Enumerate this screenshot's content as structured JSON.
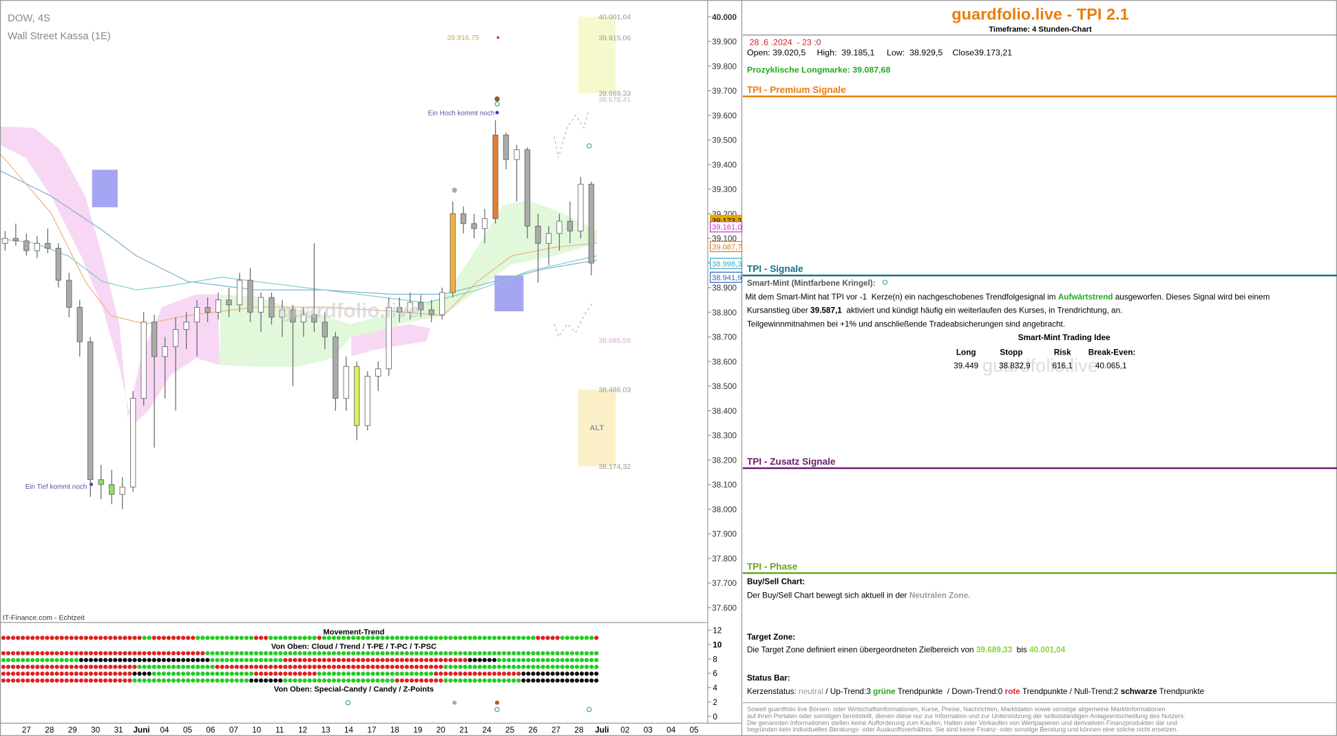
{
  "chart": {
    "symbol": "DOW, 4S",
    "name": "Wall Street Kassa (1E)",
    "source": "IT-Finance.com - Echtzeit",
    "watermark": "guardfolio.live",
    "ylim": [
      37550,
      40030
    ],
    "yticks": [
      {
        "value": 40000,
        "label": "40.000"
      },
      {
        "value": 39900,
        "label": "39.900"
      },
      {
        "value": 39800,
        "label": "39.800"
      },
      {
        "value": 39700,
        "label": "39.700"
      },
      {
        "value": 39600,
        "label": "39.600"
      },
      {
        "value": 39500,
        "label": "39.500"
      },
      {
        "value": 39400,
        "label": "39.400"
      },
      {
        "value": 39300,
        "label": "39.300"
      },
      {
        "value": 39200,
        "label": "39.200"
      },
      {
        "value": 39100,
        "label": "39.100"
      },
      {
        "value": 39000,
        "label": "39.000"
      },
      {
        "value": 38900,
        "label": "38.900"
      },
      {
        "value": 38800,
        "label": "38.800"
      },
      {
        "value": 38700,
        "label": "38.700"
      },
      {
        "value": 38600,
        "label": "38.600"
      },
      {
        "value": 38500,
        "label": "38.500"
      },
      {
        "value": 38400,
        "label": "38.400"
      },
      {
        "value": 38300,
        "label": "38.300"
      },
      {
        "value": 38200,
        "label": "38.200"
      },
      {
        "value": 38100,
        "label": "38.100"
      },
      {
        "value": 38000,
        "label": "38.000"
      },
      {
        "value": 37900,
        "label": "37.900"
      },
      {
        "value": 37800,
        "label": "37.800"
      },
      {
        "value": 37700,
        "label": "37.700"
      },
      {
        "value": 37600,
        "label": "37.600"
      }
    ],
    "dates": [
      "27",
      "28",
      "29",
      "30",
      "31",
      "Juni",
      "04",
      "05",
      "06",
      "07",
      "10",
      "11",
      "12",
      "13",
      "14",
      "17",
      "18",
      "19",
      "20",
      "21",
      "24",
      "25",
      "26",
      "27",
      "28",
      "Juli",
      "02",
      "03",
      "04",
      "05"
    ],
    "candles": [
      [
        39080,
        39130,
        39050,
        39100
      ],
      [
        39100,
        39160,
        39070,
        39090
      ],
      [
        39090,
        39120,
        39030,
        39050
      ],
      [
        39050,
        39110,
        39020,
        39080
      ],
      [
        39080,
        39140,
        39040,
        39060
      ],
      [
        39060,
        39080,
        38900,
        38930
      ],
      [
        38930,
        38960,
        38780,
        38820
      ],
      [
        38820,
        38850,
        38620,
        38680
      ],
      [
        38680,
        38700,
        38050,
        38120
      ],
      [
        38120,
        38180,
        38040,
        38100
      ],
      [
        38100,
        38160,
        38020,
        38060
      ],
      [
        38060,
        38130,
        38000,
        38090
      ],
      [
        38090,
        38480,
        38070,
        38450
      ],
      [
        38450,
        38800,
        38420,
        38760
      ],
      [
        38760,
        38790,
        38250,
        38620
      ],
      [
        38620,
        38700,
        38450,
        38660
      ],
      [
        38660,
        38780,
        38400,
        38730
      ],
      [
        38730,
        38800,
        38650,
        38760
      ],
      [
        38760,
        38850,
        38620,
        38820
      ],
      [
        38820,
        38860,
        38760,
        38800
      ],
      [
        38800,
        38880,
        38770,
        38850
      ],
      [
        38850,
        38900,
        38780,
        38830
      ],
      [
        38830,
        38960,
        38800,
        38930
      ],
      [
        38930,
        38980,
        38760,
        38800
      ],
      [
        38800,
        38880,
        38720,
        38860
      ],
      [
        38860,
        38880,
        38750,
        38780
      ],
      [
        38780,
        38850,
        38700,
        38810
      ],
      [
        38810,
        38830,
        38500,
        38760
      ],
      [
        38760,
        38820,
        38700,
        38790
      ],
      [
        38790,
        39080,
        38720,
        38760
      ],
      [
        38760,
        38800,
        38650,
        38700
      ],
      [
        38700,
        38720,
        38400,
        38450
      ],
      [
        38450,
        38620,
        38400,
        38580
      ],
      [
        38580,
        38600,
        38280,
        38340
      ],
      [
        38340,
        38560,
        38320,
        38540
      ],
      [
        38540,
        38600,
        38480,
        38570
      ],
      [
        38570,
        38860,
        38540,
        38820
      ],
      [
        38820,
        38860,
        38760,
        38800
      ],
      [
        38800,
        38880,
        38770,
        38840
      ],
      [
        38840,
        38870,
        38780,
        38810
      ],
      [
        38810,
        38850,
        38760,
        38790
      ],
      [
        38790,
        38900,
        38770,
        38880
      ],
      [
        38880,
        39250,
        38860,
        39200
      ],
      [
        39200,
        39230,
        39120,
        39160
      ],
      [
        39160,
        39200,
        39100,
        39140
      ],
      [
        39140,
        39220,
        39080,
        39180
      ],
      [
        39180,
        39580,
        39160,
        39520
      ],
      [
        39520,
        39530,
        39380,
        39420
      ],
      [
        39420,
        39480,
        39250,
        39460
      ],
      [
        39460,
        39470,
        39100,
        39150
      ],
      [
        39150,
        39200,
        38920,
        39080
      ],
      [
        39080,
        39150,
        38990,
        39120
      ],
      [
        39120,
        39200,
        39050,
        39170
      ],
      [
        39170,
        39250,
        39080,
        39130
      ],
      [
        39130,
        39350,
        39100,
        39320
      ],
      [
        39320,
        39330,
        38950,
        39000
      ]
    ],
    "price_tags": [
      {
        "value": 39173.2,
        "label": "39.173,2",
        "color": "#e8a800"
      },
      {
        "value": 39161.0,
        "label": "39.161,0",
        "color": "#cc33cc"
      },
      {
        "value": 39087.7,
        "label": "39.087,7",
        "color": "#e07a20"
      },
      {
        "value": 38998.3,
        "label": "38.998,3",
        "color": "#33aacc"
      },
      {
        "value": 38941.9,
        "label": "38.941,9",
        "color": "#3366bb"
      }
    ],
    "target_levels": [
      {
        "value": 40001.04,
        "label": "40.001,04"
      },
      {
        "value": 39915.06,
        "label": "39.915,06"
      },
      {
        "value": 39689.33,
        "label": "39.689,33"
      }
    ],
    "alt_levels": [
      {
        "value": 38486.03,
        "label": "38.486,03"
      },
      {
        "value": 38174.32,
        "label": "38.174,32"
      }
    ],
    "extra_levels": [
      {
        "value": 39678.41,
        "label": "39.678,41"
      },
      {
        "value": 38685.59,
        "label": "38.685,59"
      }
    ],
    "high_mark": {
      "value": 39916.75,
      "label": "39.916,75"
    },
    "zone_label": "ALT",
    "annotations": [
      "Ein Hoch kommt noch",
      "Ein Tief kommt noch"
    ]
  },
  "indicator": {
    "titles": [
      "Movement-Trend",
      "Von Oben: Cloud / Trend / T-PE / T-PC / T-PSC",
      "Von Oben: Special-Candy / Candy / Z-Points"
    ],
    "ylim": [
      0,
      12
    ],
    "yticks": [
      12,
      10,
      8,
      6,
      4,
      2,
      0
    ]
  },
  "panel": {
    "title": "guardfolio.live - TPI 2.1",
    "timeframe": "Timeframe: 4 Stunden-Chart",
    "datetime": "28 .6 .2024  - 23 :0",
    "ohlc": [
      "Open: 39.020,5",
      "High:  39.185,1",
      "Low:  38.929,5",
      "Close39.173,21"
    ],
    "longmark": "Prozyklische Longmarke: 39.087,68",
    "sections": [
      "TPI - Premium Signale",
      "TPI - Signale",
      "TPI - Zusatz Signale",
      "TPI - Phase"
    ],
    "smart_mint": {
      "heading": "Smart-Mint (Mintfarbene Kringel):",
      "line1": [
        "Mit dem Smart-Mint hat TPI vor -1  Kerze(n) ein nachgeschobenes Trendfolgesignal im ",
        "Aufwärtstrend",
        " ausgeworfen. Dieses Signal wird bei einem"
      ],
      "line2": [
        "Kursanstieg über ",
        "39.587,1",
        "  aktiviert und kündigt häufig ein weiterlaufen des Kurses, in Trendrichtung, an."
      ],
      "line3": "Teilgewinnmitnahmen bei +1% und anschließende Tradeabsicherungen sind angebracht.",
      "idea_title": "Smart-Mint Trading Idee",
      "headers": [
        "Long",
        "Stopp",
        "Risk",
        "Break-Even:"
      ],
      "row": [
        "39.449",
        "38.832,9",
        "616,1",
        "40.065,1"
      ]
    },
    "watermark": "guardfolio.live",
    "phase": {
      "buysell_title": "Buy/Sell Chart:",
      "buysell": [
        "Der Buy/Sell Chart bewegt sich aktuell in der ",
        "Neutralen Zone."
      ],
      "target_title": "Target Zone:",
      "target": [
        "Die Target Zone definiert einen übergeordneten Zielbereich von ",
        "39.689,33",
        "  bis ",
        "40.001,04"
      ],
      "status_title": "Status Bar:",
      "status": [
        "Kerzenstatus: ",
        "neutral",
        " / Up-Trend:3 ",
        "grüne",
        " Trendpunkte  / Down-Trend:0 ",
        "rote",
        " Trendpunkte / Null-Trend:2 ",
        "schwarze",
        " Trendpunkte"
      ]
    },
    "disclaimer": [
      "Soweit guardfolio live Börsen- oder Wirtschaftsinformationen, Kurse, Preise, Nachrichten, Marktdaten sowie sonstige allgemeine Marktinformationen",
      "auf ihren Portalen oder sonstigen bereitstellt, dienen diese nur zur Information und zur Unterstützung der selbstständigen Anlageentscheidung des Nutzers.",
      "Die genannten Informationen stellen keine Aufforderung zum Kaufen, Halten oder Verkaufen von Wertpapieren und derivativen Finanzprodukten dar und",
      "begründen kein individuelles Beratungs- oder Auskunftsverhältnis. Sie sind keine Finanz- oder sonstige Beratung und können eine solche nicht ersetzen."
    ]
  }
}
